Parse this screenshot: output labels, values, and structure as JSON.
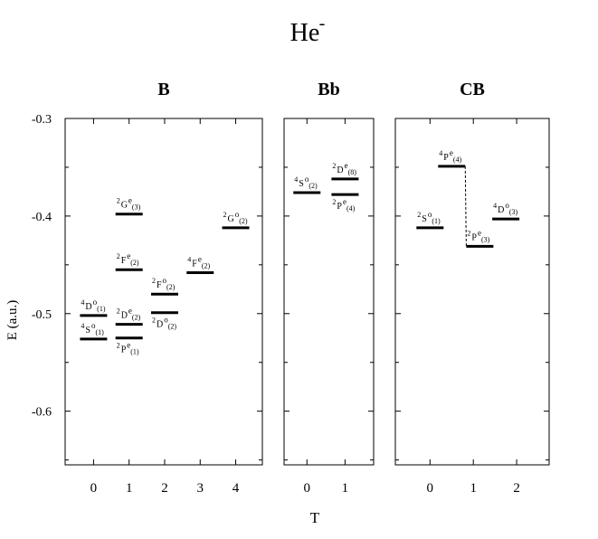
{
  "title": {
    "base": "He",
    "sup": "-"
  },
  "y_axis": {
    "label": "E (a.u.)",
    "ticks": [
      "-0.3",
      "-0.4",
      "-0.5",
      "-0.6"
    ]
  },
  "x_axis": {
    "label": "T"
  },
  "chart_data": [
    {
      "type": "scatter",
      "panel": "B",
      "title": "B",
      "xlabel": "T",
      "ylabel": "E (a.u.)",
      "ylim": [
        -0.655,
        -0.3
      ],
      "xlim": [
        -0.8,
        4.75
      ],
      "x_ticks": [
        0,
        1,
        2,
        3,
        4
      ],
      "levels": [
        {
          "x": 0,
          "y": -0.502,
          "L": "D",
          "S": "4",
          "parity": "o",
          "n": "1"
        },
        {
          "x": 0,
          "y": -0.526,
          "L": "S",
          "S": "4",
          "parity": "o",
          "n": "1"
        },
        {
          "x": 1,
          "y": -0.398,
          "L": "G",
          "S": "2",
          "parity": "e",
          "n": "3"
        },
        {
          "x": 1,
          "y": -0.455,
          "L": "F",
          "S": "2",
          "parity": "e",
          "n": "2"
        },
        {
          "x": 1,
          "y": -0.511,
          "L": "D",
          "S": "2",
          "parity": "e",
          "n": "2"
        },
        {
          "x": 1,
          "y": -0.525,
          "L": "P",
          "S": "2",
          "parity": "e",
          "n": "1"
        },
        {
          "x": 2,
          "y": -0.48,
          "L": "F",
          "S": "2",
          "parity": "o",
          "n": "2"
        },
        {
          "x": 2,
          "y": -0.499,
          "L": "D",
          "S": "2",
          "parity": "o",
          "n": "2"
        },
        {
          "x": 3,
          "y": -0.458,
          "L": "F",
          "S": "4",
          "parity": "e",
          "n": "2"
        },
        {
          "x": 4,
          "y": -0.412,
          "L": "G",
          "S": "2",
          "parity": "o",
          "n": "2"
        }
      ]
    },
    {
      "type": "scatter",
      "panel": "Bb",
      "title": "Bb",
      "xlabel": "T",
      "ylabel": "E (a.u.)",
      "ylim": [
        -0.655,
        -0.3
      ],
      "xlim": [
        -0.6,
        1.75
      ],
      "x_ticks": [
        0,
        1
      ],
      "levels": [
        {
          "x": 0,
          "y": -0.376,
          "L": "S",
          "S": "4",
          "parity": "o",
          "n": "2"
        },
        {
          "x": 1,
          "y": -0.362,
          "L": "D",
          "S": "2",
          "parity": "e",
          "n": "8"
        },
        {
          "x": 1,
          "y": -0.378,
          "L": "P",
          "S": "2",
          "parity": "e",
          "n": "4"
        }
      ]
    },
    {
      "type": "scatter",
      "panel": "CB",
      "title": "CB",
      "xlabel": "T",
      "ylabel": "E (a.u.)",
      "ylim": [
        -0.655,
        -0.3
      ],
      "xlim": [
        -0.8,
        2.75
      ],
      "x_ticks": [
        0,
        1,
        2
      ],
      "levels": [
        {
          "x": 0,
          "y": -0.412,
          "L": "S",
          "S": "2",
          "parity": "o",
          "n": "1"
        },
        {
          "x": 0.5,
          "y": -0.349,
          "L": "P",
          "S": "4",
          "parity": "e",
          "n": "4"
        },
        {
          "x": 1.15,
          "y": -0.431,
          "L": "P",
          "S": "2",
          "parity": "e",
          "n": "3"
        },
        {
          "x": 1.75,
          "y": -0.403,
          "L": "D",
          "S": "4",
          "parity": "o",
          "n": "3"
        }
      ],
      "dashed_connector": {
        "from_level": 1,
        "to_level": 2
      }
    }
  ]
}
